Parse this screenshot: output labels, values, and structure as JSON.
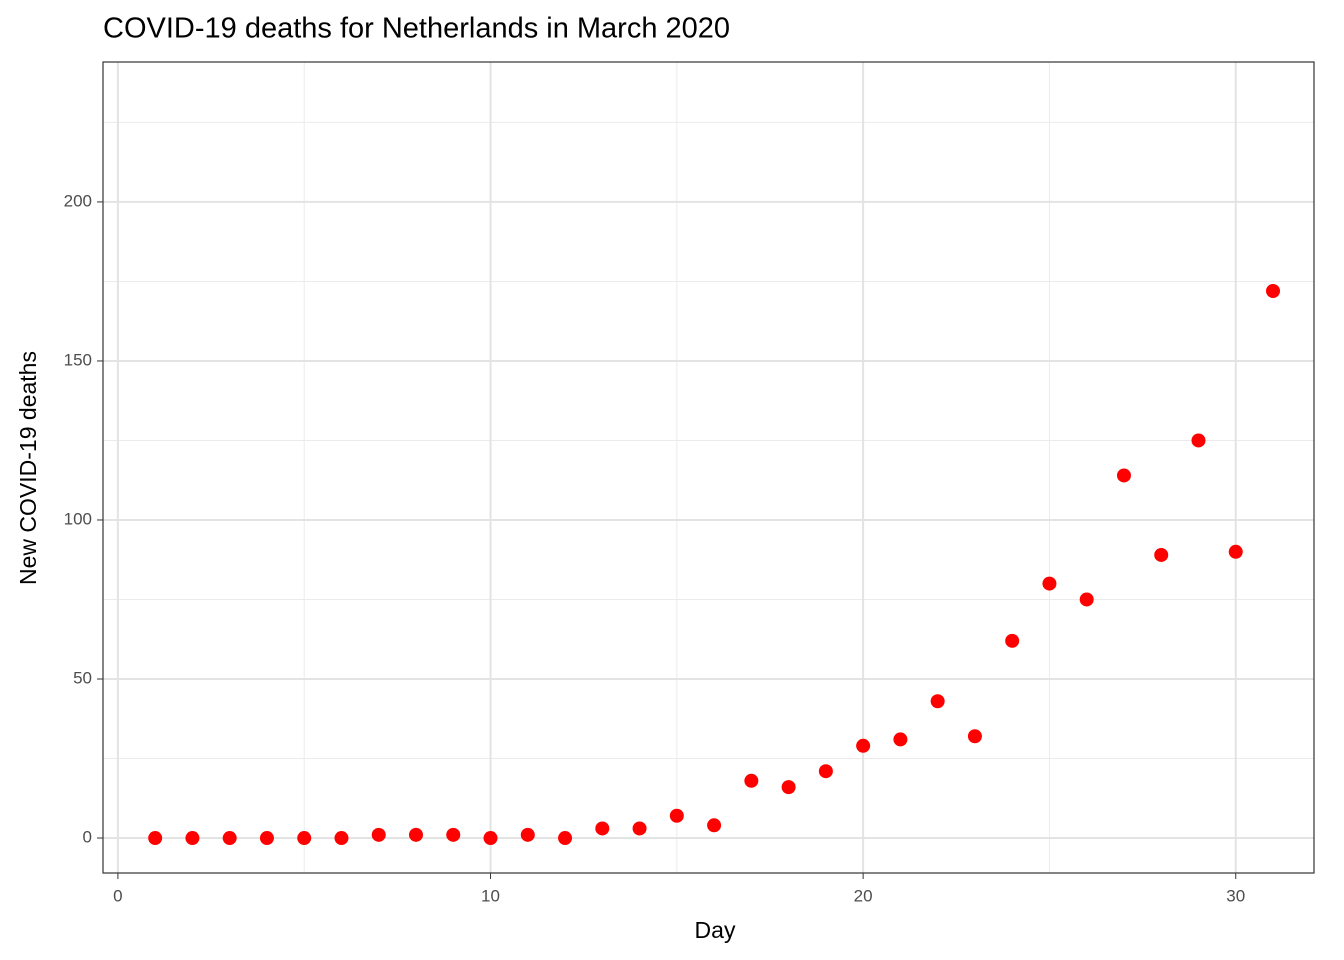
{
  "chart_data": {
    "type": "scatter",
    "title": "COVID-19 deaths for Netherlands in March 2020",
    "x_label": "Day",
    "y_label": "New COVID-19 deaths",
    "x": [
      1,
      2,
      3,
      4,
      5,
      6,
      7,
      8,
      9,
      10,
      11,
      12,
      13,
      14,
      15,
      16,
      17,
      18,
      19,
      20,
      21,
      22,
      23,
      24,
      25,
      26,
      27,
      28,
      29,
      30,
      31
    ],
    "series": [
      {
        "name": "New COVID-19 deaths",
        "color": "#ff0000",
        "values": [
          0,
          0,
          0,
          0,
          0,
          0,
          1,
          1,
          1,
          0,
          1,
          0,
          3,
          3,
          7,
          4,
          18,
          16,
          21,
          29,
          31,
          43,
          32,
          62,
          80,
          75,
          114,
          89,
          125,
          90,
          172
        ]
      }
    ],
    "xlim": [
      -0.4,
      32.1
    ],
    "ylim": [
      -11,
      244
    ],
    "xticks": [
      0,
      10,
      20,
      30
    ],
    "yticks": [
      0,
      50,
      100,
      150,
      200
    ],
    "minor_xticks": [
      5,
      15,
      25
    ],
    "minor_yticks": [
      25,
      75,
      125,
      175,
      225
    ],
    "grid": true
  }
}
